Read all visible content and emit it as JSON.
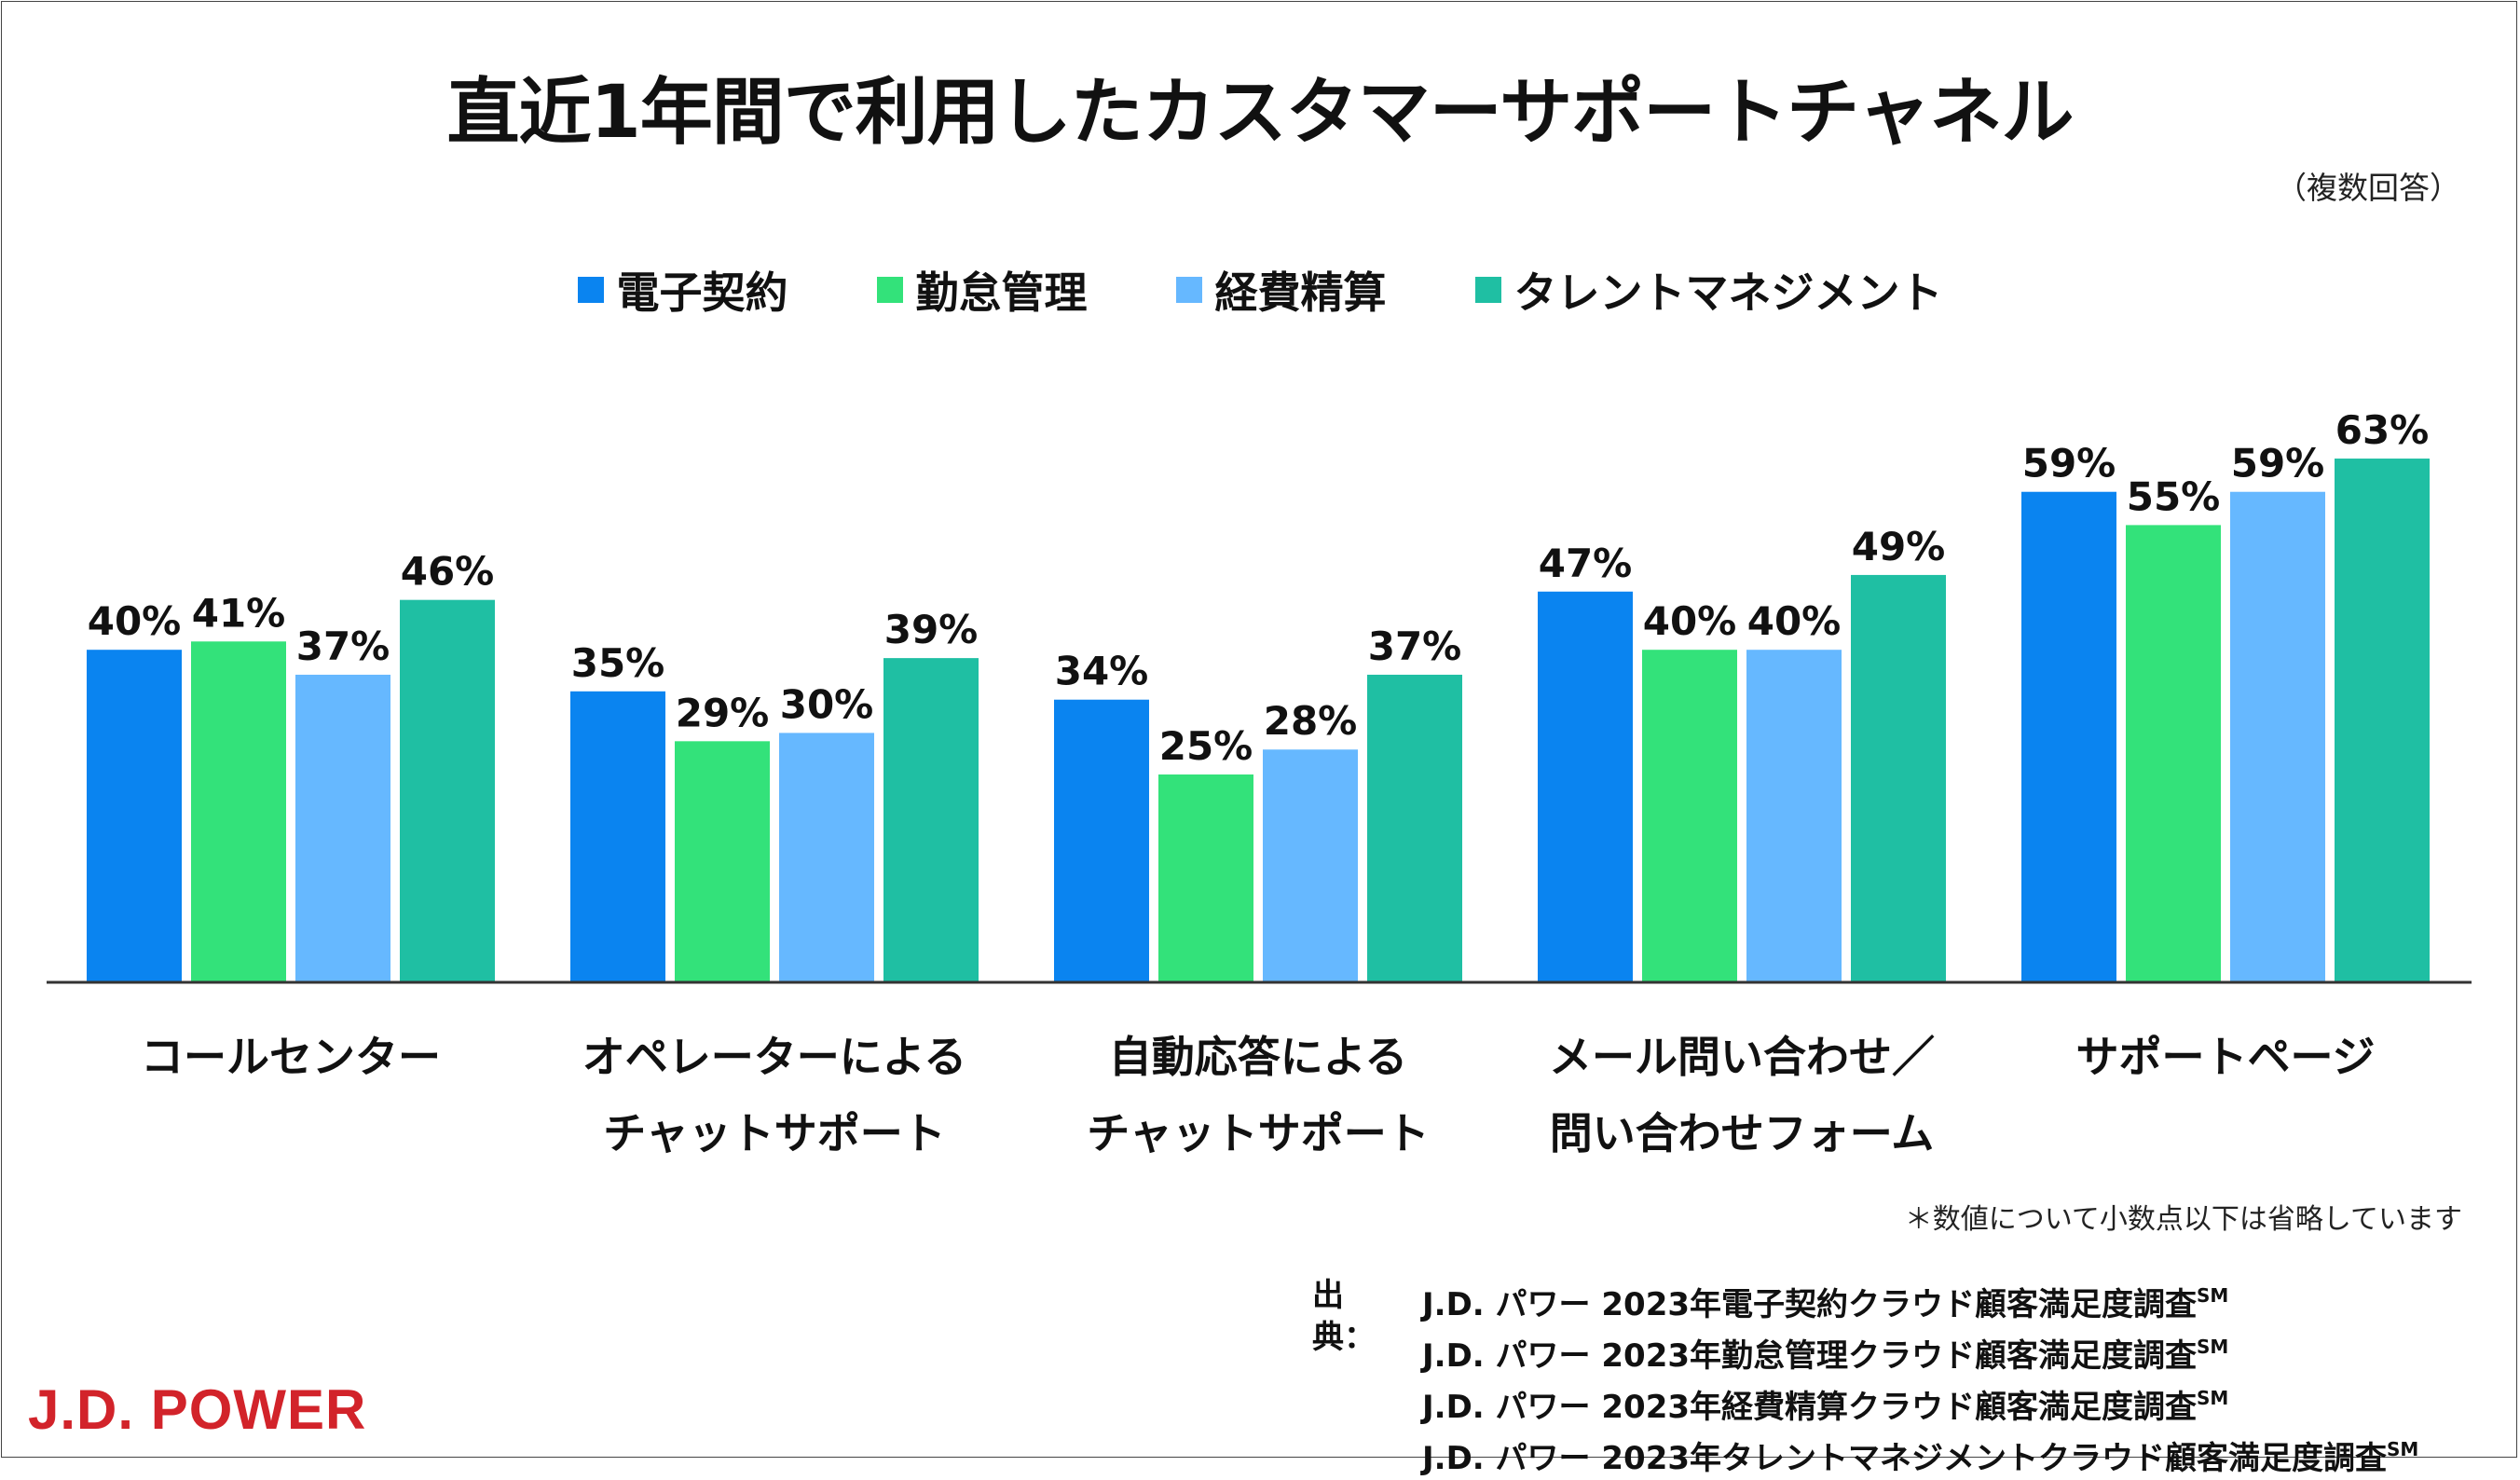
{
  "chart_data": {
    "type": "bar",
    "title": "直近1年間で利用したカスタマーサポートチャネル",
    "subtitle": "（複数回答）",
    "categories": [
      [
        "コールセンター"
      ],
      [
        "オペレーターによる",
        "チャットサポート"
      ],
      [
        "自動応答による",
        "チャットサポート"
      ],
      [
        "メール問い合わせ／",
        "問い合わせフォーム"
      ],
      [
        "サポートページ"
      ]
    ],
    "series": [
      {
        "name": "電子契約",
        "color": "#0A84F0",
        "values": [
          40,
          35,
          34,
          47,
          59
        ]
      },
      {
        "name": "勤怠管理",
        "color": "#33E27A",
        "values": [
          41,
          29,
          25,
          40,
          55
        ]
      },
      {
        "name": "経費精算",
        "color": "#66B8FF",
        "values": [
          37,
          30,
          28,
          40,
          59
        ]
      },
      {
        "name": "タレントマネジメント",
        "color": "#1FBFA3",
        "values": [
          46,
          39,
          37,
          49,
          63
        ]
      }
    ],
    "value_suffix": "%",
    "ylim": [
      0,
      70
    ],
    "xlabel": "",
    "ylabel": ""
  },
  "notes": {
    "footnote": "＊数値について小数点以下は省略しています",
    "source_label": "出典：",
    "sources": [
      {
        "text": "J.D. パワー 2023年電子契約クラウド顧客満足度調査",
        "mark": "SM"
      },
      {
        "text": "J.D. パワー 2023年勤怠管理クラウド顧客満足度調査",
        "mark": "SM"
      },
      {
        "text": "J.D. パワー 2023年経費精算クラウド顧客満足度調査",
        "mark": "SM"
      },
      {
        "text": "J.D. パワー 2023年タレントマネジメントクラウド顧客満足度調査",
        "mark": "SM"
      }
    ]
  },
  "logo": {
    "text": "J.D. POWER",
    "color": "#d2232a"
  }
}
